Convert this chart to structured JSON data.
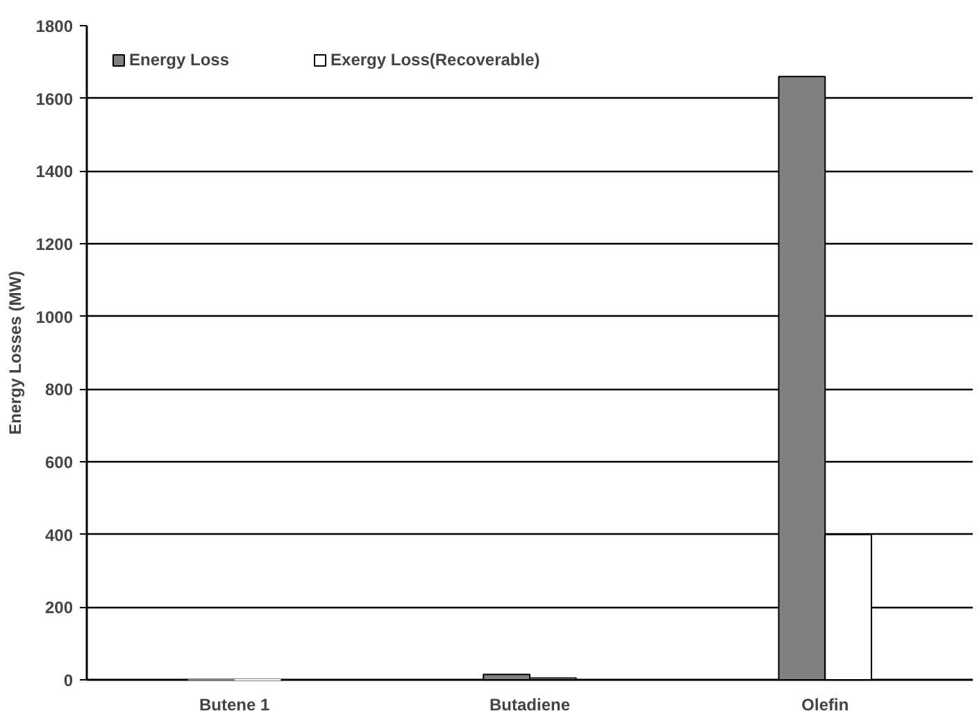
{
  "chart_data": {
    "type": "bar",
    "ylabel": "Energy Losses (MW)",
    "categories": [
      "Butene 1",
      "Butadiene",
      "Olefin"
    ],
    "series": [
      {
        "name": "Energy Loss",
        "color": "#808080",
        "values": [
          0,
          15,
          1660
        ]
      },
      {
        "name": "Exergy Loss(Recoverable)",
        "color": "#ffffff",
        "values": [
          0,
          5,
          400
        ]
      }
    ],
    "ylim": [
      0,
      1800
    ],
    "yticks": [
      0,
      200,
      400,
      600,
      800,
      1000,
      1200,
      1400,
      1600,
      1800
    ],
    "grid": "y",
    "legend": "top left"
  }
}
